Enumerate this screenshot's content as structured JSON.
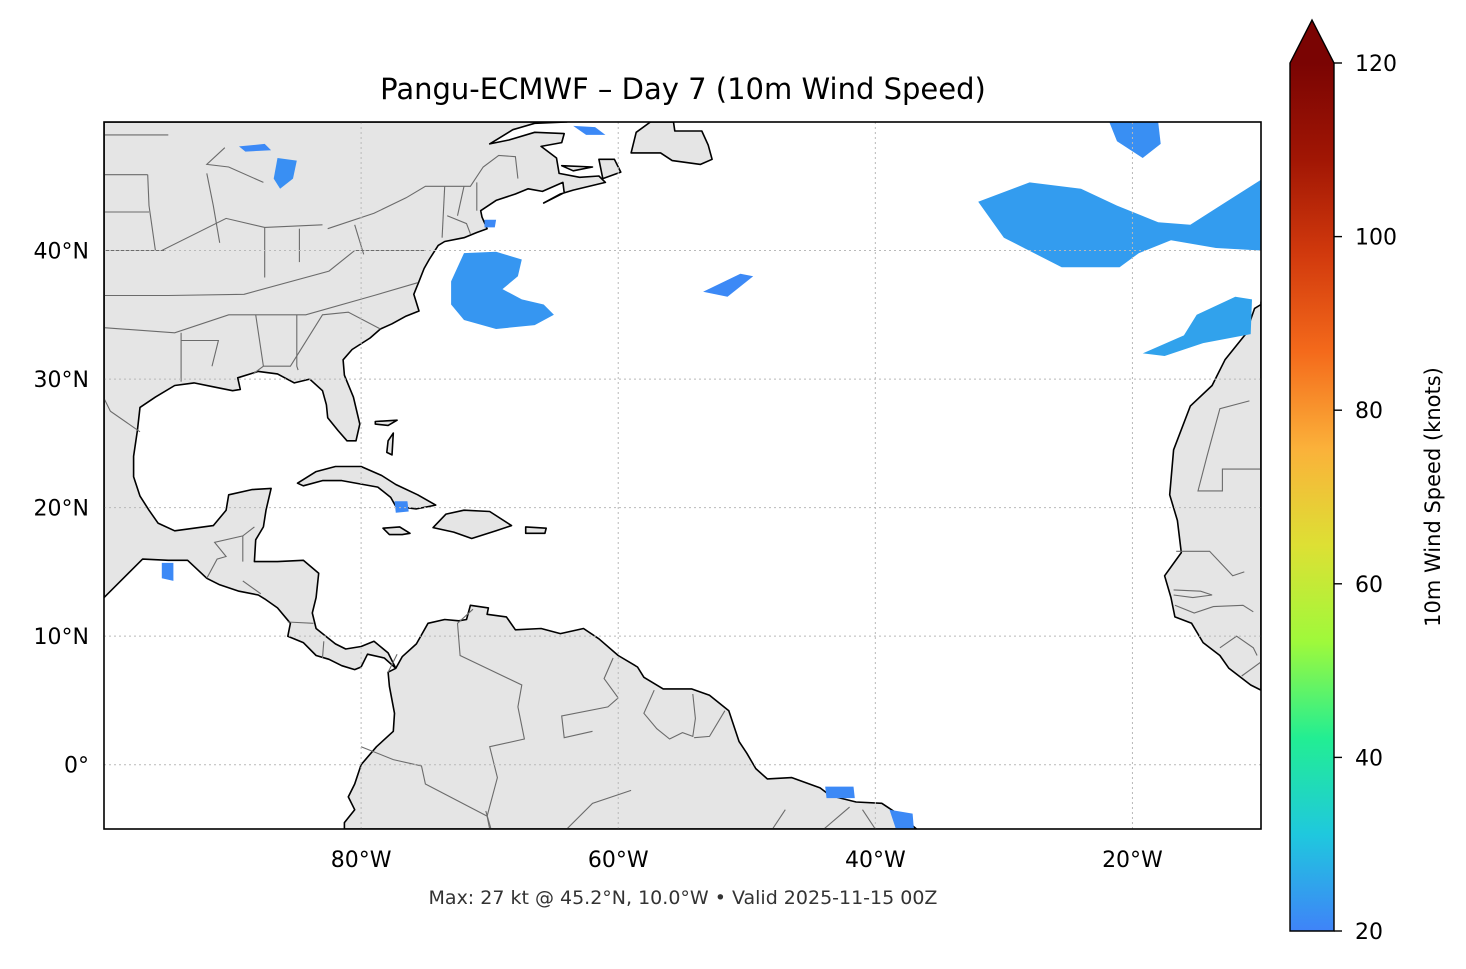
{
  "title": "Pangu-ECMWF – Day 7 (10m Wind Speed)",
  "footer": "Max: 27 kt @ 45.2°N, 10.0°W • Valid 2025-11-15 00Z",
  "map": {
    "lon_range": [
      -100,
      -10
    ],
    "lat_range": [
      -5,
      50
    ],
    "lon_ticks": [
      {
        "value": -80,
        "label": "80°W"
      },
      {
        "value": -60,
        "label": "60°W"
      },
      {
        "value": -40,
        "label": "40°W"
      },
      {
        "value": -20,
        "label": "20°W"
      }
    ],
    "lat_ticks": [
      {
        "value": 40,
        "label": "40°N"
      },
      {
        "value": 30,
        "label": "30°N"
      },
      {
        "value": 20,
        "label": "20°N"
      },
      {
        "value": 10,
        "label": "10°N"
      },
      {
        "value": 0,
        "label": "0°"
      }
    ],
    "land_color": "#e5e5e5",
    "gridlines": true
  },
  "colorbar": {
    "label": "10m Wind Speed (knots)",
    "min": 20,
    "max": 120,
    "extend": "max",
    "ticks": [
      {
        "value": 20,
        "label": "20"
      },
      {
        "value": 40,
        "label": "40"
      },
      {
        "value": 60,
        "label": "60"
      },
      {
        "value": 80,
        "label": "80"
      },
      {
        "value": 100,
        "label": "100"
      },
      {
        "value": 120,
        "label": "120"
      }
    ],
    "colormap": [
      "#3f83f8",
      "#1fc8de",
      "#22ee93",
      "#9ff93b",
      "#dde034",
      "#fbb13a",
      "#f46a1b",
      "#d23a0d",
      "#a11604",
      "#7a0403"
    ],
    "extend_color": "#7a0403"
  },
  "wind_regions": [
    {
      "name": "great-lakes",
      "points": [
        [
          -86.5,
          47.2
        ],
        [
          -85.0,
          47.0
        ],
        [
          -85.3,
          45.6
        ],
        [
          -86.3,
          44.8
        ],
        [
          -86.8,
          45.6
        ]
      ],
      "speed": 22
    },
    {
      "name": "lake-superior",
      "points": [
        [
          -89.5,
          48.1
        ],
        [
          -87.5,
          48.3
        ],
        [
          -87.0,
          47.8
        ],
        [
          -89.0,
          47.7
        ]
      ],
      "speed": 21
    },
    {
      "name": "gulf-of-st-lawrence",
      "points": [
        [
          -63.5,
          49.7
        ],
        [
          -61.8,
          49.6
        ],
        [
          -61.0,
          49.0
        ],
        [
          -62.5,
          49.0
        ]
      ],
      "speed": 21
    },
    {
      "name": "cape-cod",
      "points": [
        [
          -70.4,
          42.4
        ],
        [
          -69.5,
          42.4
        ],
        [
          -69.6,
          41.8
        ],
        [
          -70.4,
          41.8
        ]
      ],
      "speed": 21
    },
    {
      "name": "off-us-east-coast",
      "points": [
        [
          -72.0,
          39.8
        ],
        [
          -69.5,
          39.9
        ],
        [
          -67.5,
          39.3
        ],
        [
          -67.8,
          38.0
        ],
        [
          -69.0,
          37.0
        ],
        [
          -67.5,
          36.2
        ],
        [
          -65.8,
          35.8
        ],
        [
          -65.0,
          35.0
        ],
        [
          -66.5,
          34.2
        ],
        [
          -69.5,
          33.9
        ],
        [
          -72.0,
          34.6
        ],
        [
          -73.0,
          35.8
        ],
        [
          -73.0,
          37.6
        ]
      ],
      "speed": 23
    },
    {
      "name": "mid-atlantic-streak",
      "points": [
        [
          -53.4,
          36.8
        ],
        [
          -50.5,
          38.2
        ],
        [
          -49.5,
          38.0
        ],
        [
          -51.5,
          36.4
        ]
      ],
      "speed": 21
    },
    {
      "name": "northeast-atlantic-top",
      "points": [
        [
          -21.8,
          50.0
        ],
        [
          -18.0,
          50.0
        ],
        [
          -17.8,
          48.3
        ],
        [
          -19.2,
          47.2
        ],
        [
          -21.2,
          48.5
        ]
      ],
      "speed": 22
    },
    {
      "name": "northeast-atlantic-main",
      "points": [
        [
          -32.0,
          43.8
        ],
        [
          -28.0,
          45.3
        ],
        [
          -24.0,
          44.8
        ],
        [
          -21.2,
          43.5
        ],
        [
          -18.0,
          42.2
        ],
        [
          -15.5,
          42.0
        ],
        [
          -13.0,
          43.6
        ],
        [
          -10.0,
          45.5
        ],
        [
          -10.0,
          40.0
        ],
        [
          -13.5,
          40.2
        ],
        [
          -17.0,
          40.8
        ],
        [
          -19.5,
          39.8
        ],
        [
          -21.0,
          38.7
        ],
        [
          -25.5,
          38.7
        ],
        [
          -30.0,
          41.0
        ]
      ],
      "speed": 24
    },
    {
      "name": "off-iberia",
      "points": [
        [
          -19.2,
          32.0
        ],
        [
          -16.0,
          33.4
        ],
        [
          -15.0,
          35.0
        ],
        [
          -12.0,
          36.4
        ],
        [
          -10.7,
          36.2
        ],
        [
          -10.8,
          33.5
        ],
        [
          -14.5,
          32.8
        ],
        [
          -17.5,
          31.8
        ]
      ],
      "speed": 25
    },
    {
      "name": "caribbean-patch",
      "points": [
        [
          -77.4,
          20.5
        ],
        [
          -76.4,
          20.5
        ],
        [
          -76.3,
          19.7
        ],
        [
          -77.3,
          19.6
        ]
      ],
      "speed": 21
    },
    {
      "name": "pacific-patch",
      "points": [
        [
          -95.5,
          15.7
        ],
        [
          -94.6,
          15.7
        ],
        [
          -94.6,
          14.3
        ],
        [
          -95.5,
          14.5
        ]
      ],
      "speed": 21
    },
    {
      "name": "brazil-coast-a",
      "points": [
        [
          -43.9,
          -1.7
        ],
        [
          -41.7,
          -1.7
        ],
        [
          -41.6,
          -2.6
        ],
        [
          -43.8,
          -2.6
        ]
      ],
      "speed": 21
    },
    {
      "name": "brazil-coast-b",
      "points": [
        [
          -38.9,
          -3.5
        ],
        [
          -37.1,
          -3.8
        ],
        [
          -37.0,
          -5.0
        ],
        [
          -38.4,
          -5.0
        ]
      ],
      "speed": 21
    }
  ],
  "max_marker": {
    "lat": 45.2,
    "lon": -10.0,
    "speed": 27
  }
}
